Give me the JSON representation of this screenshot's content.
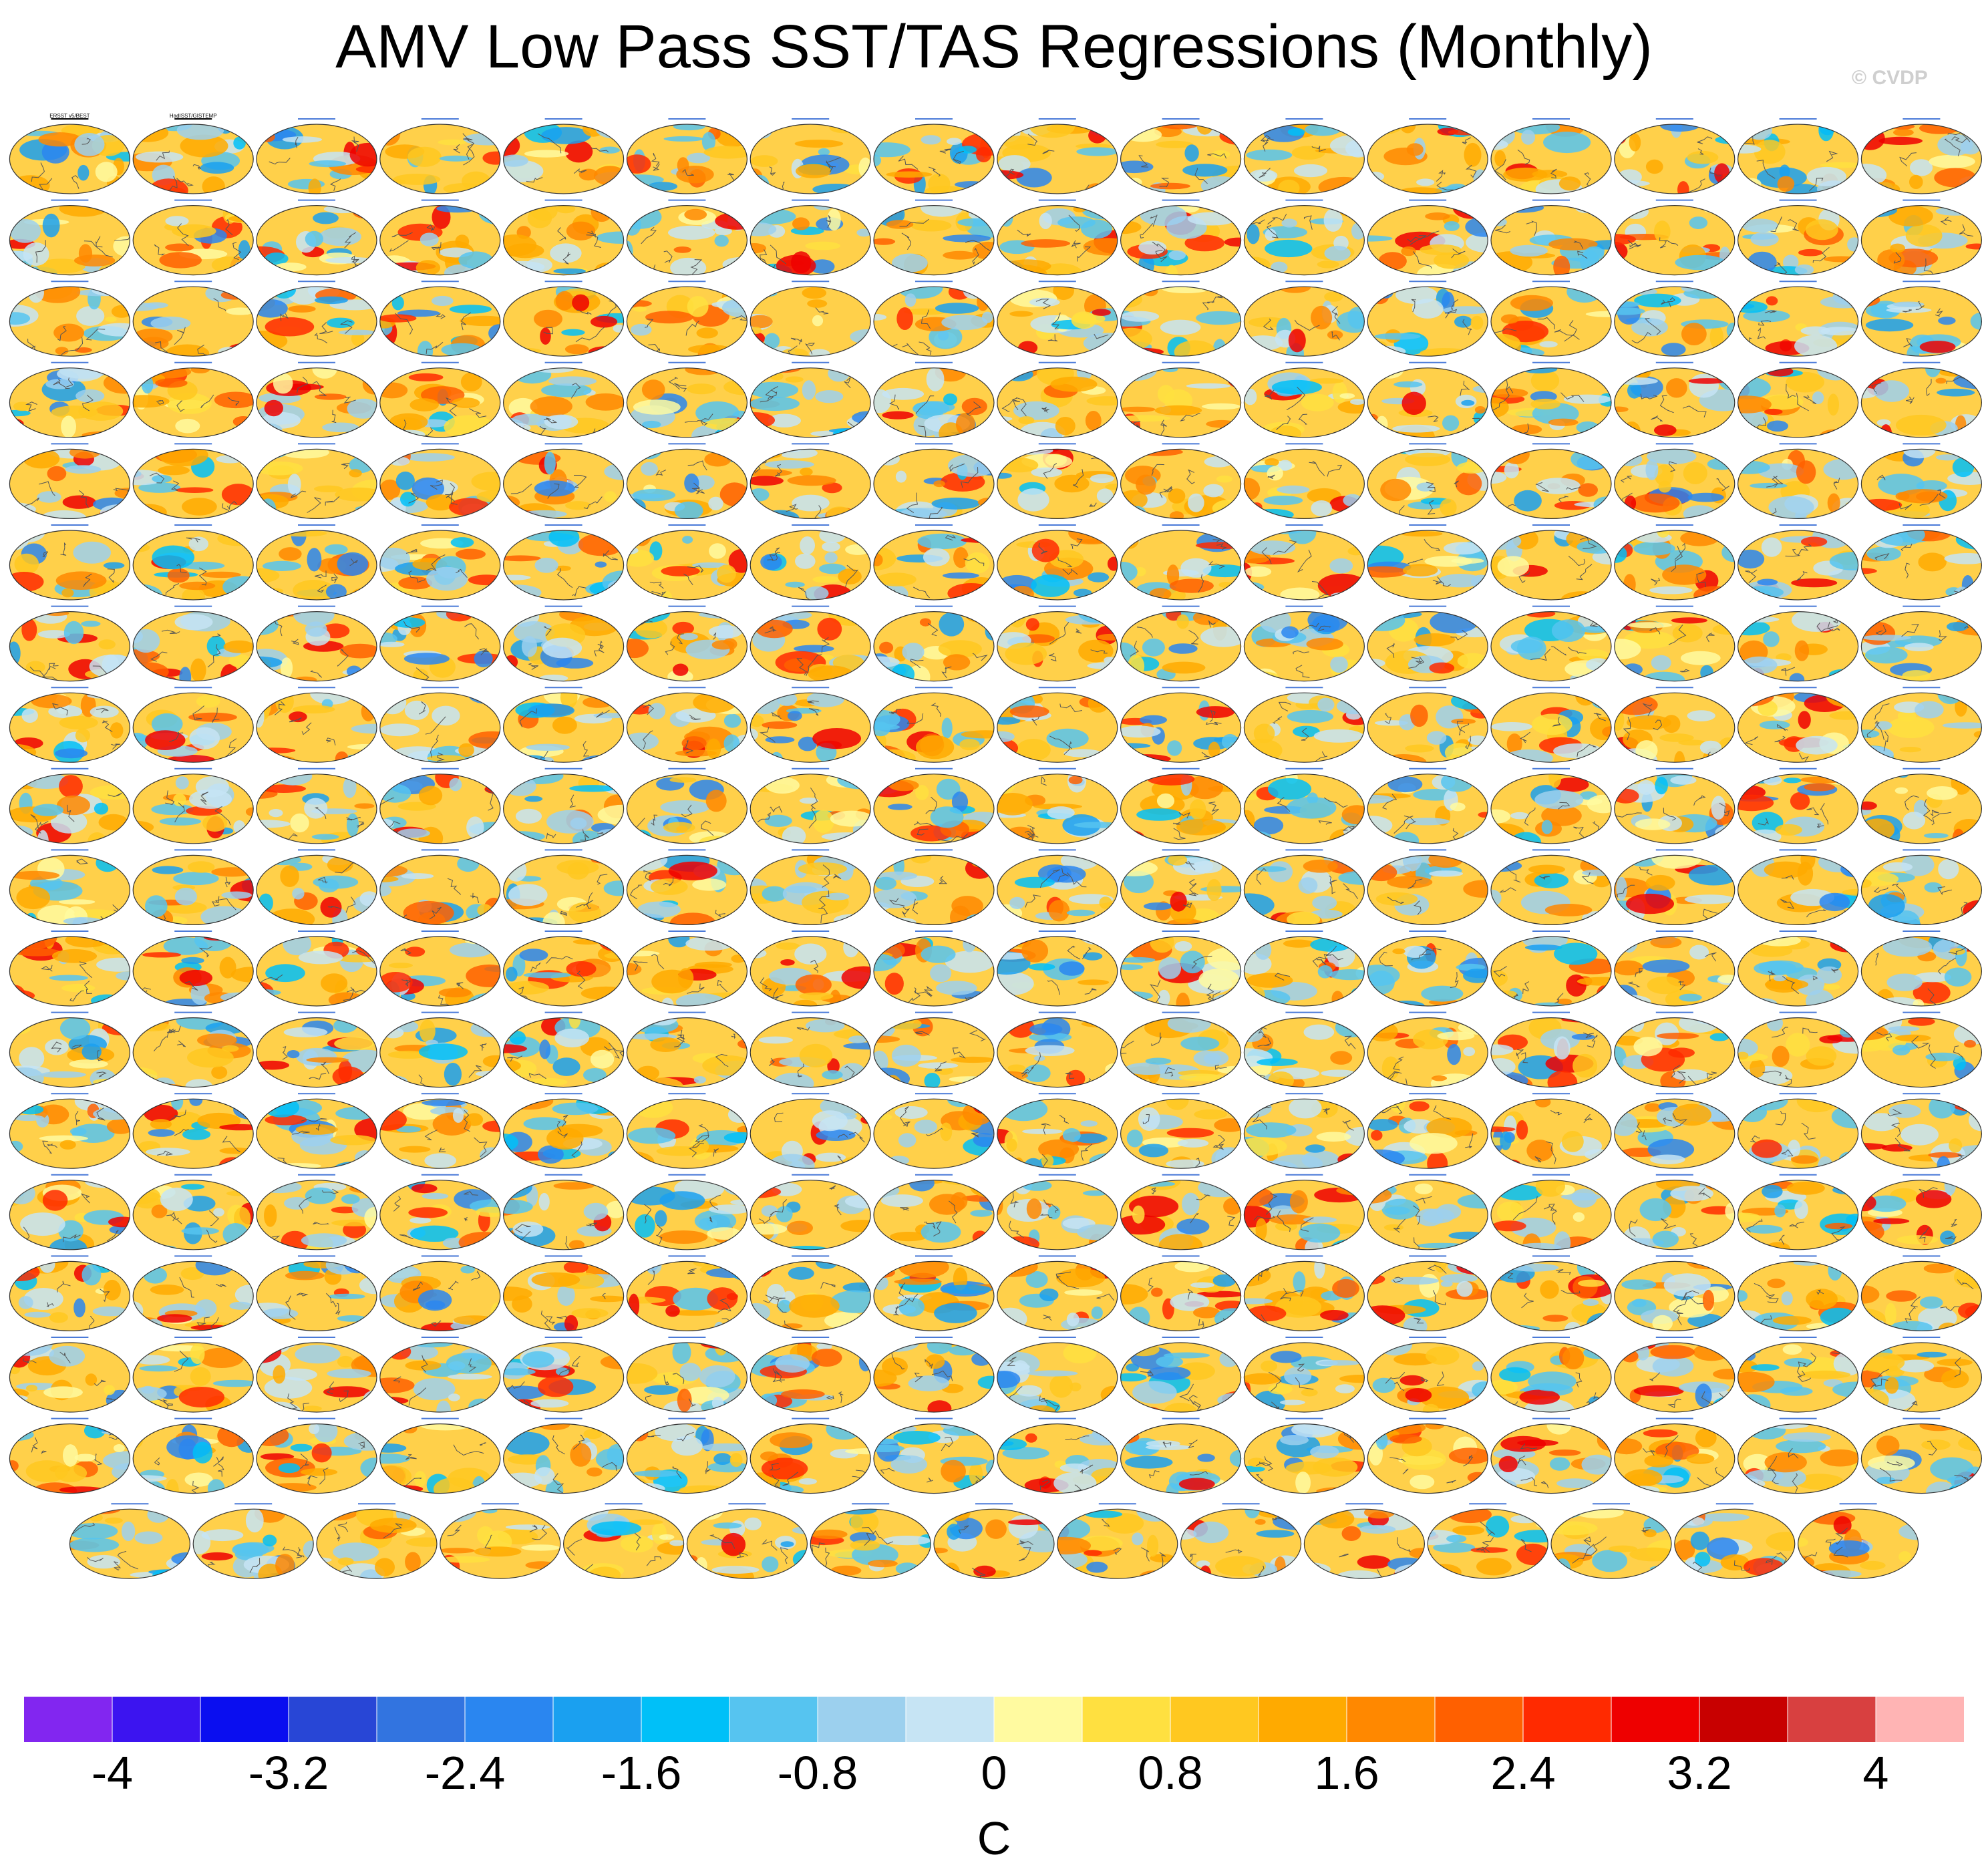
{
  "title": "AMV Low Pass SST/TAS Regressions (Monthly)",
  "watermark": "© CVDP",
  "panel_grid": {
    "full_rows": 17,
    "columns": 16,
    "last_row_panels": 15,
    "total_panels": 287
  },
  "observation_panels": [
    "ERSST v5/BEST",
    "HadISST/GISTEMP"
  ],
  "chart_data": {
    "type": "heatmap",
    "title": "AMV Low Pass SST/TAS Regressions (Monthly)",
    "description_units": "C",
    "colorbar": {
      "units": "C",
      "min": -4.4,
      "max": 4.4,
      "step": 0.4,
      "tick_labels": [
        "-4",
        "-3.2",
        "-2.4",
        "-1.6",
        "-0.8",
        "0",
        "0.8",
        "1.6",
        "2.4",
        "3.2",
        "4"
      ],
      "colors": [
        "#8226f0",
        "#3c14f0",
        "#0a0ef0",
        "#2846d6",
        "#3274e0",
        "#2a86f0",
        "#1aa0f0",
        "#00c0f8",
        "#56c4f0",
        "#9cd0ee",
        "#c6e4f4",
        "#fffaa0",
        "#ffe040",
        "#ffc820",
        "#ffaa00",
        "#ff8800",
        "#ff6000",
        "#ff2a00",
        "#ee0000",
        "#c80000",
        "#d84040",
        "#ffb4b4"
      ]
    }
  }
}
